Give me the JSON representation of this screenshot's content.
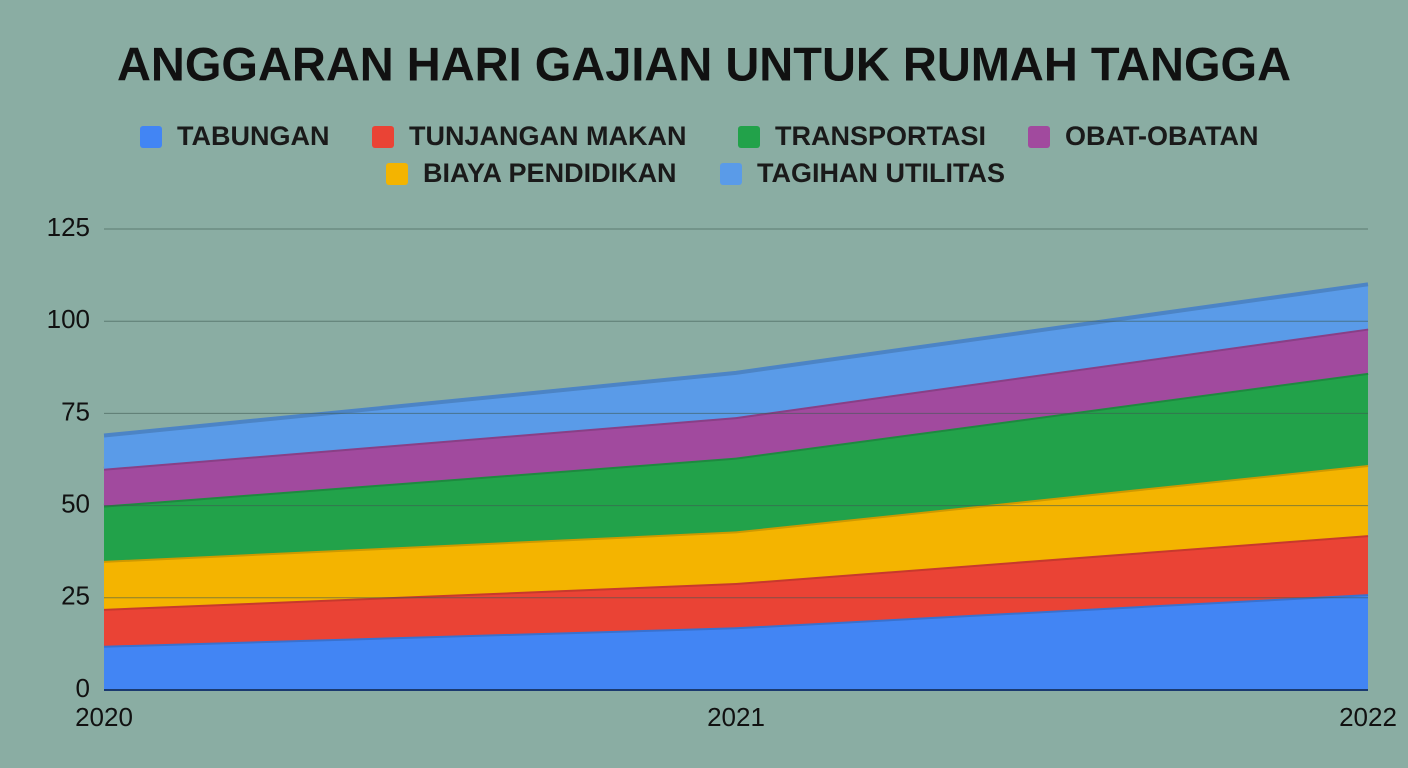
{
  "chart_data": {
    "type": "stacked-area",
    "title": "ANGGARAN HARI GAJIAN UNTUK RUMAH TANGGA",
    "x": [
      2020,
      2021,
      2022
    ],
    "xlim": [
      2020,
      2022
    ],
    "xticks": [
      2020,
      2021,
      2022
    ],
    "ylim": [
      0,
      125
    ],
    "yticks": [
      0,
      25,
      50,
      75,
      100,
      125
    ],
    "grid": true,
    "series": [
      {
        "name": "TABUNGAN",
        "color": "#4285f4",
        "values": [
          12,
          17,
          26
        ]
      },
      {
        "name": "TUNJANGAN MAKAN",
        "color": "#ea4335",
        "values": [
          10,
          12,
          16
        ]
      },
      {
        "name": "BIAYA PENDIDIKAN",
        "color": "#f4b400",
        "values": [
          13,
          14,
          19
        ]
      },
      {
        "name": "TRANSPORTASI",
        "color": "#22a24a",
        "values": [
          15,
          20,
          25
        ]
      },
      {
        "name": "OBAT-OBATAN",
        "color": "#a14a9e",
        "values": [
          10,
          11,
          12
        ]
      },
      {
        "name": "TAGIHAN UTILITAS",
        "color": "#5a9be8",
        "values": [
          9,
          12,
          12
        ]
      }
    ]
  }
}
